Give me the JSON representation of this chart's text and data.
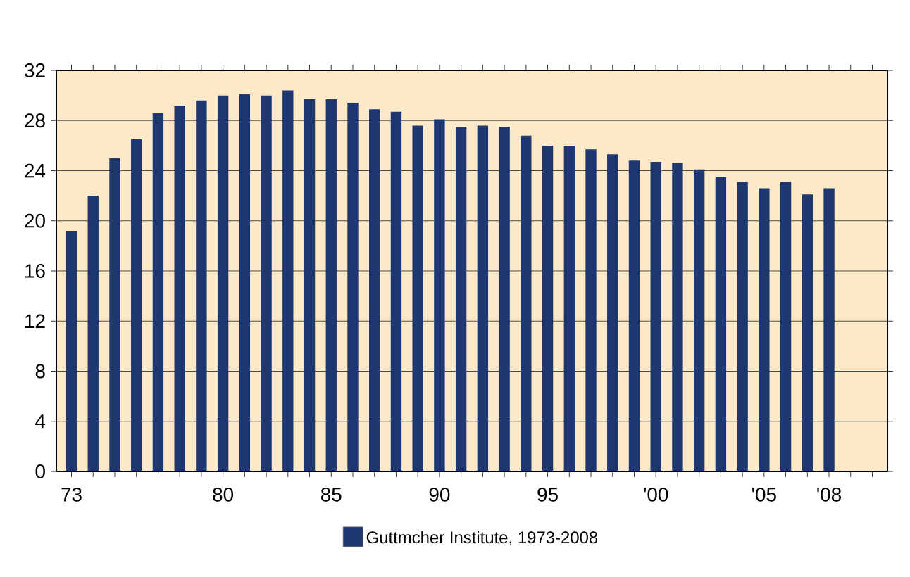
{
  "chart_data": {
    "type": "bar",
    "categories": [
      "73",
      null,
      null,
      null,
      null,
      null,
      null,
      "80",
      null,
      null,
      null,
      null,
      "85",
      null,
      null,
      null,
      null,
      "90",
      null,
      null,
      null,
      null,
      "95",
      null,
      null,
      null,
      null,
      "'00",
      null,
      null,
      null,
      null,
      "'05",
      null,
      null,
      "'08",
      null,
      null
    ],
    "series": [
      {
        "name": "Guttmcher Institute, 1973-2008",
        "color": "#1f3770",
        "values": [
          19.2,
          22.0,
          25.0,
          26.5,
          28.6,
          29.2,
          29.6,
          30.0,
          30.1,
          30.0,
          30.4,
          29.7,
          29.7,
          29.4,
          28.9,
          28.7,
          27.6,
          28.1,
          27.5,
          27.6,
          27.5,
          26.8,
          26.0,
          26.0,
          25.7,
          25.3,
          24.8,
          24.7,
          24.6,
          24.1,
          23.5,
          23.1,
          22.6,
          23.1,
          22.1,
          22.6,
          null,
          null
        ]
      }
    ],
    "ylim": [
      0,
      32
    ],
    "yticks": [
      0,
      4,
      8,
      12,
      16,
      20,
      24,
      28,
      32
    ],
    "grid": "y",
    "legend": "bottom"
  }
}
